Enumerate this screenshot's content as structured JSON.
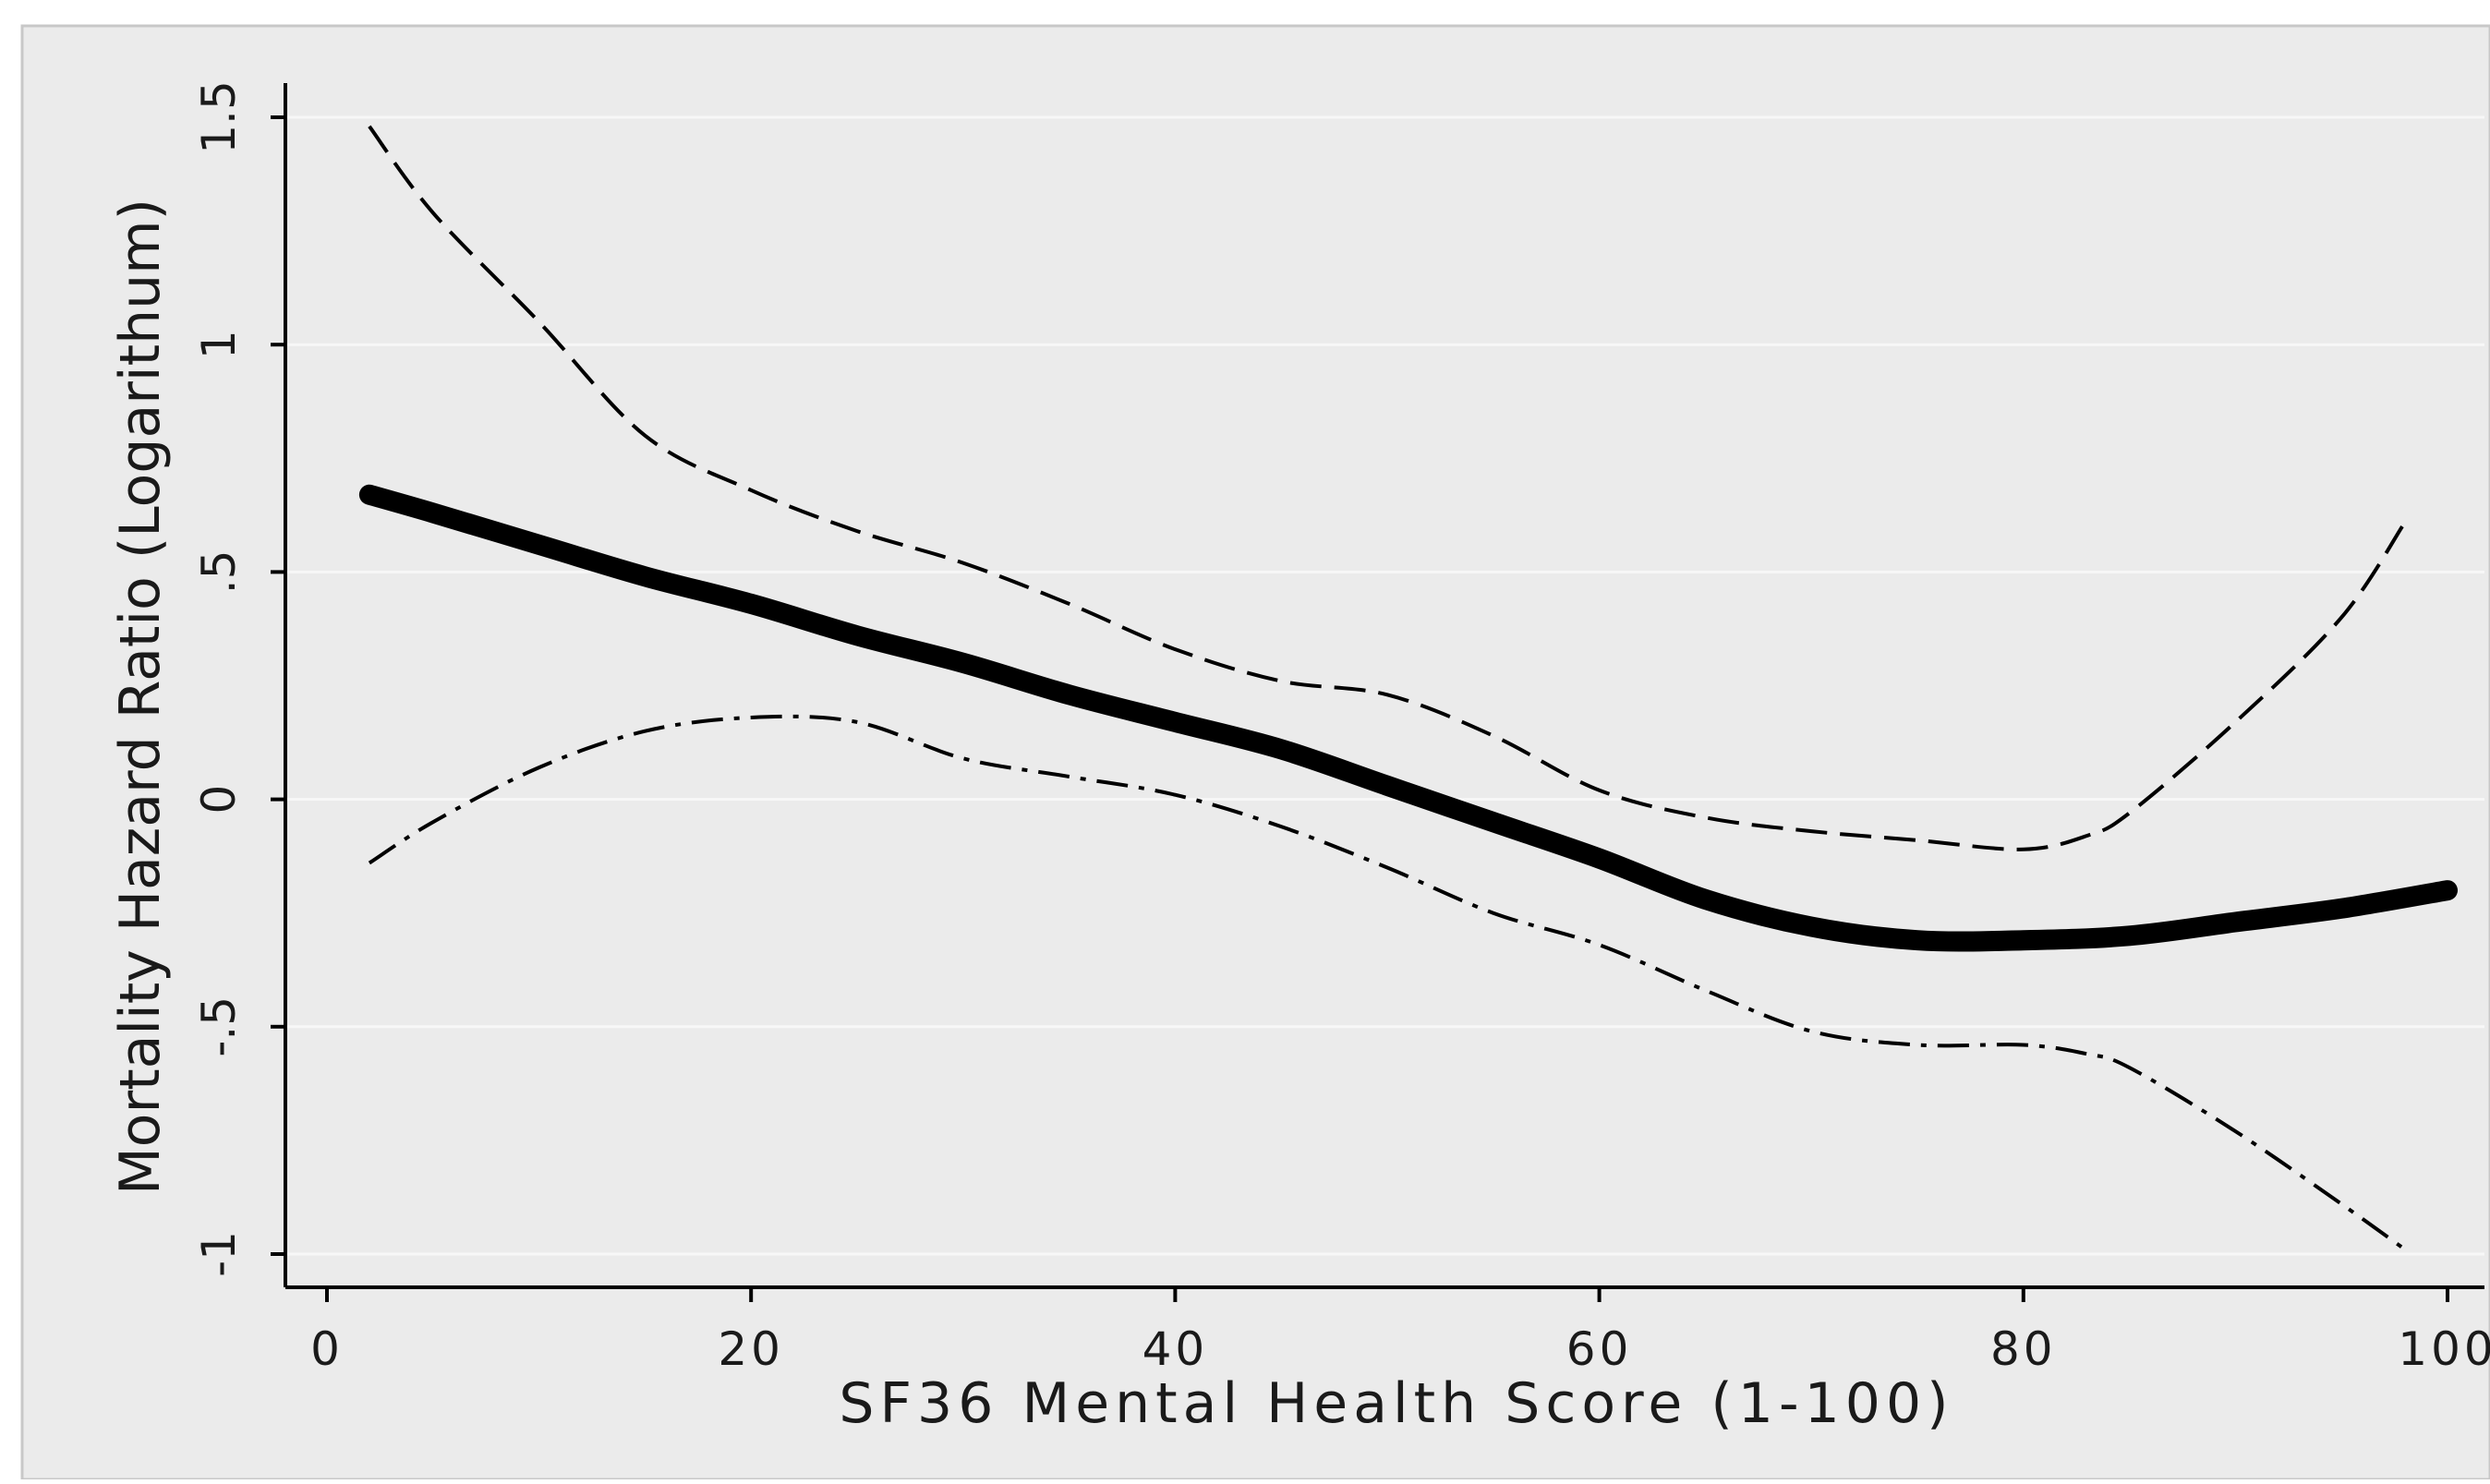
{
  "chart_data": {
    "type": "line",
    "xlabel": "SF36 Mental Health Score (1-100)",
    "ylabel": "Mortality Hazard Ratio (Logarithum)",
    "xlim": [
      0,
      100
    ],
    "ylim": [
      -1,
      1.5
    ],
    "x_ticks": [
      0,
      20,
      40,
      60,
      80,
      100
    ],
    "x_tick_labels": [
      "0",
      "20",
      "40",
      "60",
      "80",
      "100"
    ],
    "y_ticks": [
      1.5,
      1,
      0.5,
      0,
      -0.5,
      -1
    ],
    "y_tick_labels": [
      "1.5",
      "1",
      ".5",
      "0",
      "-.5",
      "-1"
    ],
    "grid": true,
    "background_color": "#ebebeb",
    "line_color": "#000000",
    "series": [
      {
        "style": "solid-thick",
        "x": [
          2,
          5,
          10,
          15,
          20,
          25,
          30,
          35,
          40,
          45,
          50,
          55,
          60,
          65,
          70,
          75,
          80,
          85,
          90,
          95,
          100
        ],
        "y": [
          0.67,
          0.63,
          0.56,
          0.49,
          0.43,
          0.36,
          0.3,
          0.23,
          0.17,
          0.11,
          0.03,
          -0.05,
          -0.13,
          -0.22,
          -0.28,
          -0.31,
          -0.31,
          -0.3,
          -0.27,
          -0.24,
          -0.2
        ]
      },
      {
        "style": "dashed",
        "x": [
          2,
          5,
          10,
          15,
          20,
          25,
          30,
          35,
          40,
          45,
          50,
          55,
          60,
          65,
          70,
          75,
          80,
          83,
          85,
          90,
          95,
          98
        ],
        "y": [
          1.48,
          1.29,
          1.05,
          0.8,
          0.68,
          0.59,
          0.52,
          0.43,
          0.33,
          0.26,
          0.23,
          0.14,
          0.02,
          -0.04,
          -0.07,
          -0.09,
          -0.11,
          -0.08,
          -0.03,
          0.17,
          0.4,
          0.61
        ]
      },
      {
        "style": "dash-dot",
        "x": [
          2,
          5,
          10,
          15,
          20,
          25,
          30,
          35,
          40,
          45,
          50,
          55,
          60,
          65,
          70,
          75,
          80,
          83,
          85,
          90,
          95,
          98
        ],
        "y": [
          -0.14,
          -0.05,
          0.07,
          0.15,
          0.18,
          0.17,
          0.09,
          0.05,
          0.01,
          -0.06,
          -0.15,
          -0.25,
          -0.32,
          -0.42,
          -0.51,
          -0.54,
          -0.54,
          -0.56,
          -0.59,
          -0.73,
          -0.89,
          -0.99
        ]
      }
    ]
  }
}
